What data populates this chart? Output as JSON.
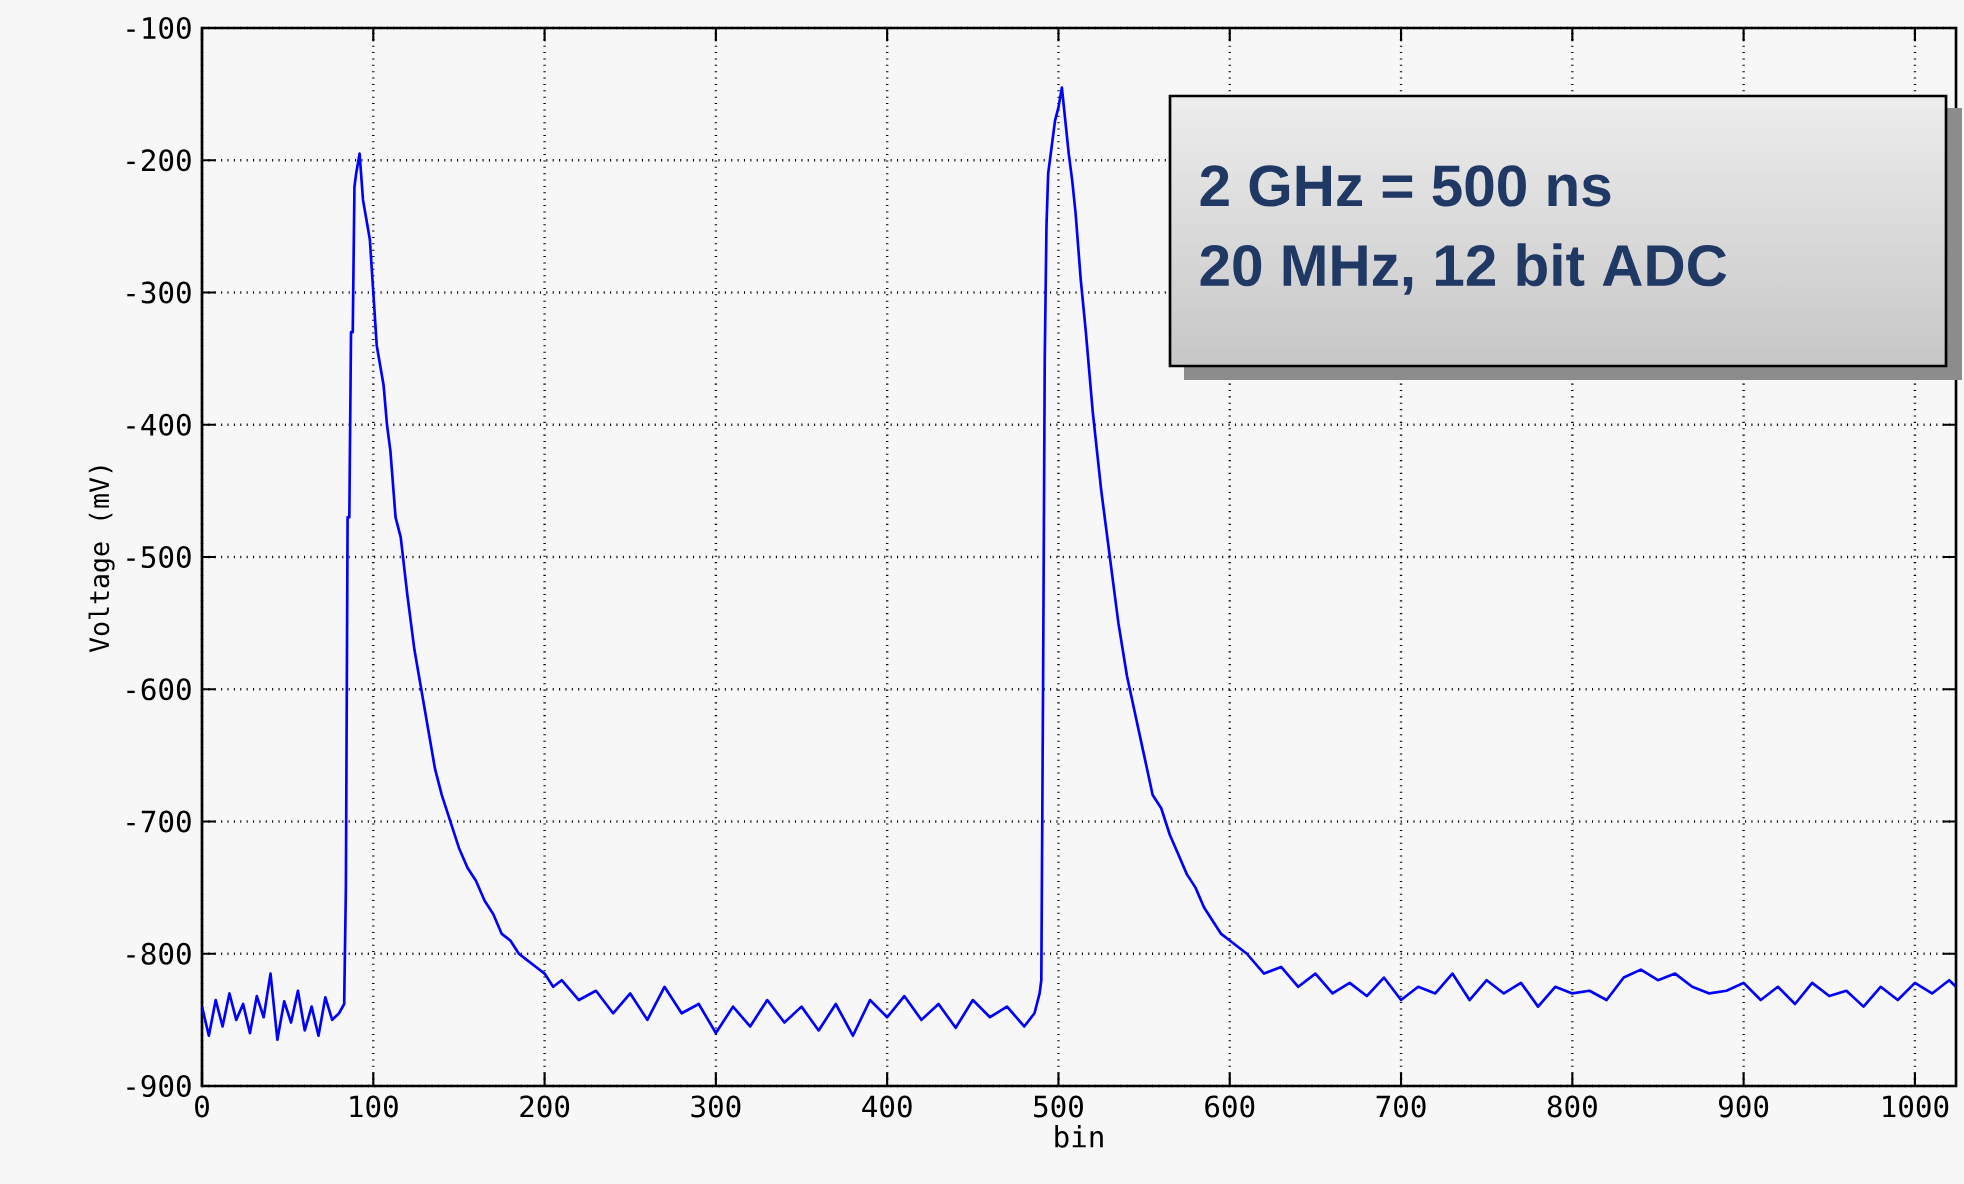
{
  "chart_data": {
    "type": "line",
    "xlabel": "bin",
    "ylabel": "Voltage (mV)",
    "annotations": [
      "2 GHz = 500 ns",
      "20 MHz, 12 bit ADC"
    ],
    "x": [
      0,
      4,
      8,
      12,
      16,
      20,
      24,
      28,
      32,
      36,
      40,
      44,
      48,
      52,
      56,
      60,
      64,
      68,
      72,
      76,
      80,
      83,
      84,
      85,
      86,
      87,
      88,
      89,
      90,
      92,
      94,
      96,
      98,
      100,
      102,
      104,
      106,
      108,
      110,
      113,
      116,
      120,
      124,
      128,
      132,
      136,
      140,
      145,
      150,
      155,
      160,
      165,
      170,
      175,
      180,
      185,
      190,
      195,
      200,
      205,
      210,
      220,
      230,
      240,
      250,
      260,
      270,
      280,
      290,
      300,
      310,
      320,
      330,
      340,
      350,
      360,
      370,
      380,
      390,
      400,
      410,
      420,
      430,
      440,
      450,
      460,
      470,
      480,
      486,
      489,
      490,
      491,
      492,
      493,
      494,
      496,
      498,
      500,
      502,
      504,
      506,
      508,
      510,
      513,
      516,
      520,
      525,
      530,
      535,
      540,
      545,
      550,
      555,
      560,
      565,
      570,
      575,
      580,
      585,
      590,
      595,
      600,
      605,
      610,
      620,
      630,
      640,
      650,
      660,
      670,
      680,
      690,
      700,
      710,
      720,
      730,
      740,
      750,
      760,
      770,
      780,
      790,
      800,
      810,
      820,
      830,
      840,
      850,
      860,
      870,
      880,
      890,
      900,
      910,
      920,
      930,
      940,
      950,
      960,
      970,
      980,
      990,
      1000,
      1010,
      1020,
      1024
    ],
    "series": [
      {
        "color": "#0000ff",
        "values": [
          -840,
          -862,
          -835,
          -855,
          -830,
          -850,
          -838,
          -860,
          -832,
          -848,
          -815,
          -865,
          -836,
          -852,
          -828,
          -858,
          -840,
          -862,
          -833,
          -850,
          -845,
          -838,
          -750,
          -470,
          -470,
          -330,
          -330,
          -220,
          -210,
          -195,
          -230,
          -245,
          -260,
          -300,
          -340,
          -355,
          -370,
          -400,
          -420,
          -470,
          -485,
          -530,
          -570,
          -600,
          -630,
          -660,
          -680,
          -700,
          -720,
          -735,
          -745,
          -760,
          -770,
          -785,
          -790,
          -800,
          -805,
          -810,
          -815,
          -825,
          -820,
          -835,
          -828,
          -845,
          -830,
          -850,
          -825,
          -845,
          -838,
          -860,
          -840,
          -855,
          -835,
          -852,
          -840,
          -858,
          -838,
          -862,
          -835,
          -848,
          -832,
          -850,
          -838,
          -856,
          -835,
          -848,
          -840,
          -855,
          -845,
          -830,
          -820,
          -600,
          -350,
          -250,
          -210,
          -190,
          -170,
          -160,
          -145,
          -170,
          -195,
          -215,
          -240,
          -290,
          -330,
          -390,
          -450,
          -500,
          -550,
          -590,
          -620,
          -650,
          -680,
          -690,
          -710,
          -725,
          -740,
          -750,
          -765,
          -775,
          -785,
          -790,
          -795,
          -800,
          -815,
          -810,
          -825,
          -815,
          -830,
          -822,
          -832,
          -818,
          -835,
          -825,
          -830,
          -815,
          -835,
          -820,
          -830,
          -822,
          -840,
          -825,
          -830,
          -828,
          -835,
          -818,
          -812,
          -820,
          -815,
          -825,
          -830,
          -828,
          -822,
          -835,
          -825,
          -838,
          -822,
          -832,
          -828,
          -840,
          -825,
          -835,
          -822,
          -830,
          -820,
          -825
        ]
      }
    ],
    "xlim": [
      0,
      1024
    ],
    "ylim": [
      -900,
      -100
    ],
    "xticks": [
      0,
      100,
      200,
      300,
      400,
      500,
      600,
      700,
      800,
      900,
      1000
    ],
    "yticks": [
      -900,
      -800,
      -700,
      -600,
      -500,
      -400,
      -300,
      -200,
      -100
    ],
    "grid": true,
    "marker": "none",
    "line_style": "solid"
  }
}
